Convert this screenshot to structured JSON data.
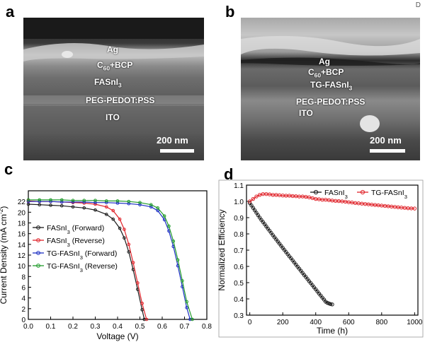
{
  "corner_mark": "D",
  "panel_a": {
    "letter": "a",
    "layers": [
      "Ag",
      "C60+BCP",
      "FASnI3",
      "PEG-PEDOT:PSS",
      "ITO"
    ],
    "scale": "200 nm"
  },
  "panel_b": {
    "letter": "b",
    "layers": [
      "Ag",
      "C60+BCP",
      "TG-FASnI3",
      "PEG-PEDOT:PSS",
      "ITO"
    ],
    "scale": "200 nm"
  },
  "panel_c": {
    "letter": "c"
  },
  "panel_d": {
    "letter": "d"
  },
  "colors": {
    "black": "#1a1a1a",
    "red": "#e0242b",
    "blue": "#1c2fc4",
    "green": "#1f9a2a"
  },
  "chart_data": [
    {
      "type": "line",
      "title": "",
      "xlabel": "Voltage (V)",
      "ylabel": "Current Density (mA cm-2)",
      "xlim": [
        0.0,
        0.8
      ],
      "ylim": [
        0,
        24
      ],
      "xticks": [
        "0.0",
        "0.1",
        "0.2",
        "0.3",
        "0.4",
        "0.5",
        "0.6",
        "0.7",
        "0.8"
      ],
      "yticks": [
        "0",
        "2",
        "4",
        "6",
        "8",
        "10",
        "12",
        "14",
        "16",
        "18",
        "20",
        "22"
      ],
      "legend_position": "center-left",
      "series": [
        {
          "name": "FASnI3 (Forward)",
          "color": "#1a1a1a",
          "x": [
            0,
            0.05,
            0.1,
            0.15,
            0.2,
            0.25,
            0.3,
            0.35,
            0.38,
            0.41,
            0.43,
            0.45,
            0.47,
            0.49,
            0.51,
            0.52
          ],
          "y": [
            21.5,
            21.4,
            21.3,
            21.2,
            21.0,
            20.8,
            20.4,
            19.6,
            18.7,
            17.0,
            15.2,
            12.6,
            9.3,
            5.6,
            1.8,
            0.0
          ]
        },
        {
          "name": "FASnI3 (Reverse)",
          "color": "#e0242b",
          "x": [
            0,
            0.05,
            0.1,
            0.15,
            0.2,
            0.25,
            0.3,
            0.35,
            0.38,
            0.41,
            0.43,
            0.45,
            0.47,
            0.49,
            0.51,
            0.53
          ],
          "y": [
            22.1,
            22.0,
            22.0,
            21.9,
            21.8,
            21.7,
            21.5,
            21.0,
            20.3,
            18.7,
            16.8,
            14.0,
            10.6,
            6.8,
            3.0,
            0.0
          ]
        },
        {
          "name": "TG-FASnI3 (Forward)",
          "color": "#1c2fc4",
          "x": [
            0,
            0.05,
            0.1,
            0.15,
            0.2,
            0.25,
            0.3,
            0.35,
            0.4,
            0.45,
            0.5,
            0.55,
            0.58,
            0.61,
            0.63,
            0.65,
            0.67,
            0.69,
            0.71,
            0.725
          ],
          "y": [
            22.0,
            22.0,
            22.0,
            21.9,
            21.9,
            21.9,
            21.8,
            21.8,
            21.7,
            21.6,
            21.4,
            21.0,
            20.3,
            18.6,
            16.5,
            13.6,
            10.0,
            6.1,
            2.2,
            0.0
          ]
        },
        {
          "name": "TG-FASnI3 (Reverse)",
          "color": "#1f9a2a",
          "x": [
            0,
            0.05,
            0.1,
            0.15,
            0.2,
            0.25,
            0.3,
            0.35,
            0.4,
            0.45,
            0.5,
            0.55,
            0.58,
            0.61,
            0.63,
            0.65,
            0.67,
            0.69,
            0.71,
            0.735
          ],
          "y": [
            22.3,
            22.3,
            22.3,
            22.3,
            22.2,
            22.2,
            22.2,
            22.1,
            22.1,
            22.0,
            21.8,
            21.4,
            20.8,
            19.3,
            17.4,
            14.6,
            11.1,
            7.2,
            3.3,
            0.0
          ]
        }
      ]
    },
    {
      "type": "line",
      "title": "",
      "xlabel": "Time (h)",
      "ylabel": "Normalized Efficiency",
      "xlim": [
        -20,
        1020
      ],
      "ylim": [
        0.3,
        1.1
      ],
      "xticks": [
        "0",
        "200",
        "400",
        "600",
        "800",
        "1000"
      ],
      "yticks": [
        "0.3",
        "0.4",
        "0.5",
        "0.6",
        "0.7",
        "0.8",
        "0.9",
        "1.0",
        "1.1"
      ],
      "legend_position": "top",
      "series": [
        {
          "name": "FASnI3",
          "color": "#1a1a1a",
          "x": [
            0,
            10,
            20,
            30,
            40,
            50,
            60,
            70,
            80,
            90,
            100,
            110,
            120,
            130,
            140,
            150,
            160,
            170,
            180,
            190,
            200,
            210,
            220,
            230,
            240,
            250,
            260,
            270,
            280,
            290,
            300,
            310,
            320,
            330,
            340,
            350,
            360,
            370,
            380,
            390,
            400,
            410,
            420,
            430,
            440,
            450,
            460,
            470,
            480,
            490,
            500
          ],
          "y": [
            0.99,
            0.975,
            0.96,
            0.945,
            0.93,
            0.915,
            0.9,
            0.886,
            0.873,
            0.86,
            0.846,
            0.832,
            0.819,
            0.806,
            0.792,
            0.779,
            0.766,
            0.753,
            0.74,
            0.727,
            0.714,
            0.701,
            0.688,
            0.675,
            0.662,
            0.65,
            0.637,
            0.624,
            0.611,
            0.598,
            0.586,
            0.573,
            0.56,
            0.547,
            0.535,
            0.522,
            0.509,
            0.497,
            0.484,
            0.471,
            0.459,
            0.446,
            0.433,
            0.421,
            0.408,
            0.396,
            0.383,
            0.376,
            0.372,
            0.368,
            0.366
          ]
        },
        {
          "name": "TG-FASnI3",
          "color": "#e0242b",
          "x": [
            0,
            20,
            40,
            60,
            80,
            100,
            120,
            140,
            160,
            180,
            200,
            220,
            240,
            260,
            280,
            300,
            320,
            340,
            360,
            380,
            400,
            420,
            440,
            460,
            480,
            500,
            520,
            540,
            560,
            580,
            600,
            620,
            640,
            660,
            680,
            700,
            720,
            740,
            760,
            780,
            800,
            820,
            840,
            860,
            880,
            900,
            920,
            940,
            960,
            980,
            1000
          ],
          "y": [
            1.0,
            1.015,
            1.03,
            1.04,
            1.045,
            1.045,
            1.043,
            1.04,
            1.04,
            1.038,
            1.036,
            1.035,
            1.035,
            1.033,
            1.032,
            1.03,
            1.03,
            1.028,
            1.025,
            1.02,
            1.015,
            1.013,
            1.01,
            1.01,
            1.008,
            1.005,
            1.003,
            1.002,
            1.0,
            0.998,
            0.995,
            0.993,
            0.99,
            0.988,
            0.986,
            0.984,
            0.982,
            0.98,
            0.978,
            0.976,
            0.974,
            0.972,
            0.97,
            0.968,
            0.966,
            0.964,
            0.962,
            0.96,
            0.958,
            0.957,
            0.956
          ]
        }
      ]
    }
  ]
}
